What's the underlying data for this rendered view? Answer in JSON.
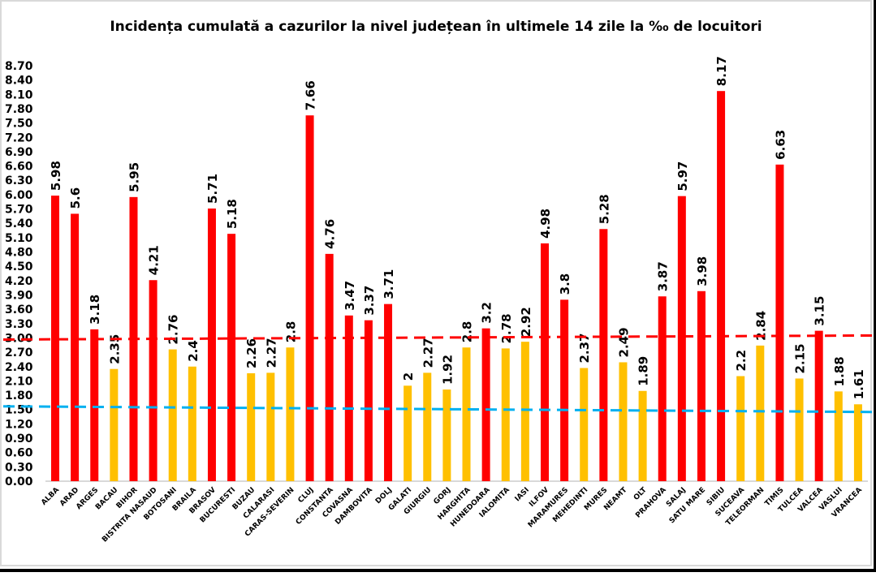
{
  "chart_data": {
    "type": "bar",
    "title": "Incidența cumulată a cazurilor la nivel județean în ultimele 14 zile la ‰ de locuitori",
    "xlabel": "",
    "ylabel": "",
    "ylim": [
      0,
      8.7
    ],
    "ytick_step": 0.3,
    "grid": false,
    "legend": "none",
    "categories": [
      "ALBA",
      "ARAD",
      "ARGES",
      "BACAU",
      "BIHOR",
      "BISTRITA NASAUD",
      "BOTOSANI",
      "BRAILA",
      "BRASOV",
      "BUCURESTI",
      "BUZAU",
      "CALARASI",
      "CARAS-SEVERIN",
      "CLUJ",
      "CONSTANTA",
      "COVASNA",
      "DAMBOVITA",
      "DOLJ",
      "GALATI",
      "GIURGIU",
      "GORJ",
      "HARGHITA",
      "HUNEDOARA",
      "IALOMITA",
      "IASI",
      "ILFOV",
      "MARAMURES",
      "MEHEDINTI",
      "MURES",
      "NEAMT",
      "OLT",
      "PRAHOVA",
      "SALAJ",
      "SATU MARE",
      "SIBIU",
      "SUCEAVA",
      "TELEORMAN",
      "TIMIS",
      "TULCEA",
      "VALCEA",
      "VASLUI",
      "VRANCEA"
    ],
    "values": [
      5.98,
      5.6,
      3.18,
      2.35,
      5.95,
      4.21,
      2.76,
      2.4,
      5.71,
      5.18,
      2.26,
      2.27,
      2.8,
      7.66,
      4.76,
      3.47,
      3.37,
      3.71,
      2,
      2.27,
      1.92,
      2.8,
      3.2,
      2.78,
      2.92,
      4.98,
      3.8,
      2.37,
      5.28,
      2.49,
      1.89,
      3.87,
      5.97,
      3.98,
      8.17,
      2.2,
      2.84,
      6.63,
      2.15,
      3.15,
      1.88,
      1.61
    ],
    "colors": {
      "above_3": "#ff0000",
      "below_3": "#ffc000"
    },
    "reference_lines": [
      {
        "value": 3.0,
        "color": "#ff0000",
        "style": "dashed"
      },
      {
        "value": 1.5,
        "color": "#00b0f0",
        "style": "dashed"
      }
    ]
  }
}
